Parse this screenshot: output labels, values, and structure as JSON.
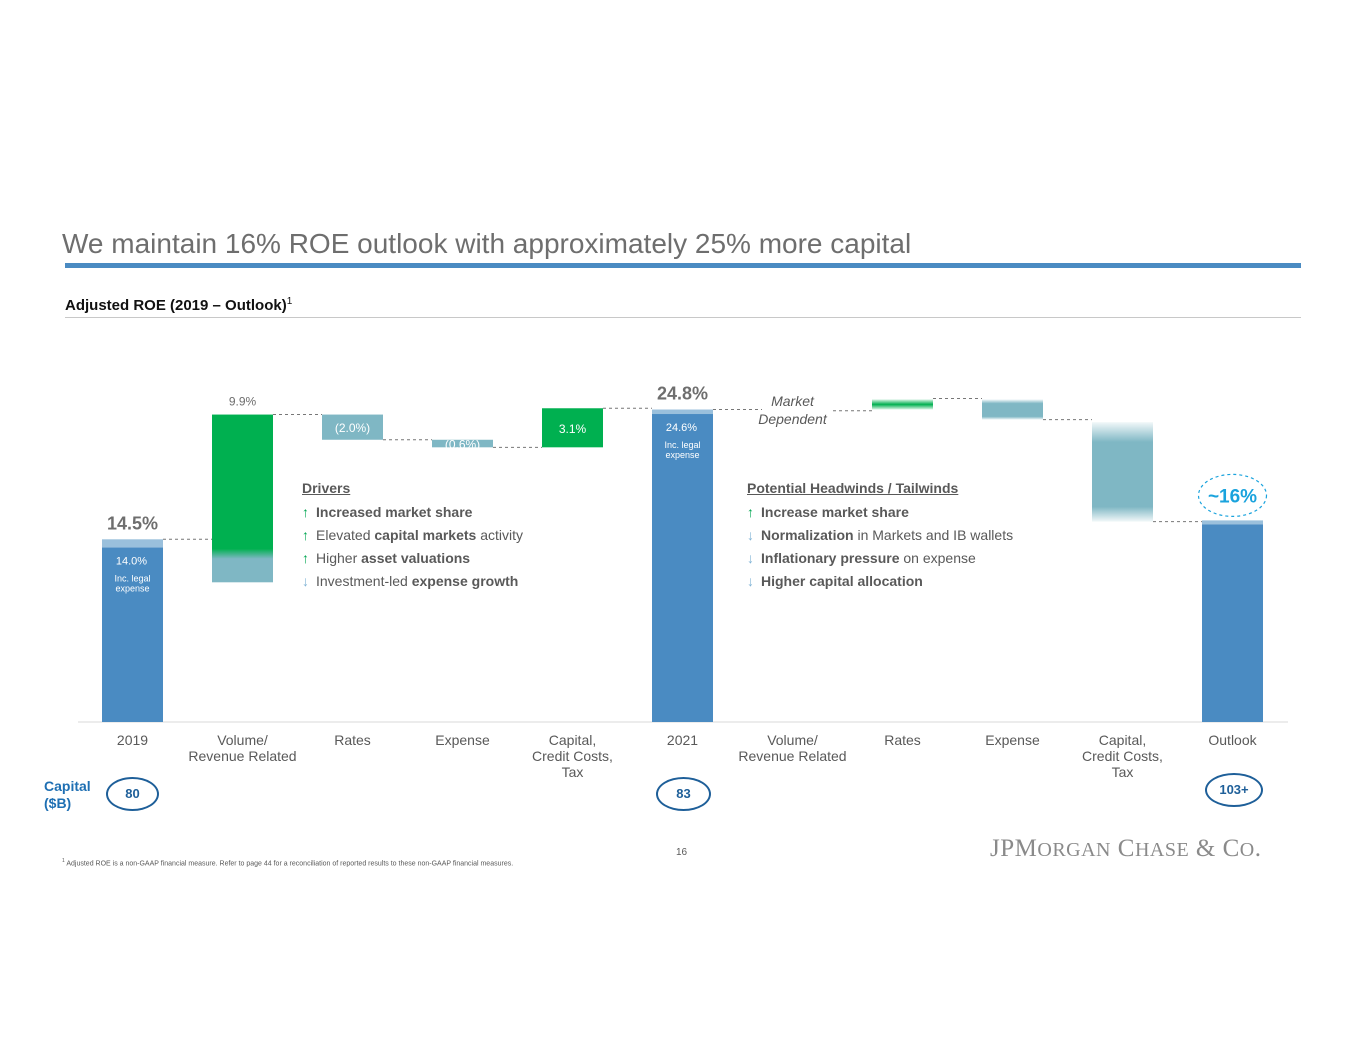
{
  "title": "We maintain 16% ROE outlook with approximately 25% more capital",
  "subtitle": "Adjusted ROE (2019 – Outlook)",
  "subtitle_sup": "1",
  "colors": {
    "total": "#4a8bc2",
    "increase": "#00b050",
    "decrease": "#7fb7c4",
    "accent": "#1aa3dd",
    "capital": "#1e5f99"
  },
  "chart_data": {
    "type": "waterfall",
    "unit": "%",
    "bars": [
      {
        "category": "2019",
        "kind": "total",
        "value": 14.5,
        "label": "14.5%",
        "inner_value": 14.0,
        "inner_label": "14.0%",
        "note": "Inc. legal\nexpense"
      },
      {
        "category": "Volume/\nRevenue Related",
        "kind": "increase",
        "value": 9.9,
        "label": "9.9%"
      },
      {
        "category": "Rates",
        "kind": "decrease",
        "value": -2.0,
        "label": "(2.0%)"
      },
      {
        "category": "Expense",
        "kind": "decrease",
        "value": -0.6,
        "label": "(0.6%)"
      },
      {
        "category": "Capital,\nCredit Costs,\nTax",
        "kind": "increase",
        "value": 3.1,
        "label": "3.1%"
      },
      {
        "category": "2021",
        "kind": "total",
        "value": 24.8,
        "label": "24.8%",
        "inner_value": 24.6,
        "inner_label": "24.6%",
        "note": "Inc. legal\nexpense"
      },
      {
        "category": "Volume/\nRevenue Related",
        "kind": "indicative",
        "label": "Market\nDependent"
      },
      {
        "category": "Rates",
        "kind": "indicative-increase"
      },
      {
        "category": "Expense",
        "kind": "indicative-decrease"
      },
      {
        "category": "Capital,\nCredit Costs,\nTax",
        "kind": "indicative-decrease"
      },
      {
        "category": "Outlook",
        "kind": "total",
        "value": 16,
        "label": "~16%"
      }
    ],
    "capital": {
      "label": "Capital\n($B)",
      "values": [
        "80",
        "83",
        "103+"
      ],
      "at": [
        "2019",
        "2021",
        "Outlook"
      ]
    }
  },
  "drivers": {
    "title": "Drivers",
    "items": [
      {
        "dir": "up",
        "parts": [
          [
            "Increased market share",
            true
          ]
        ]
      },
      {
        "dir": "up",
        "parts": [
          [
            "Elevated ",
            false
          ],
          [
            "capital markets",
            true
          ],
          [
            " activity",
            false
          ]
        ]
      },
      {
        "dir": "up",
        "parts": [
          [
            "Higher ",
            false
          ],
          [
            "asset valuations",
            true
          ]
        ]
      },
      {
        "dir": "down",
        "parts": [
          [
            "Investment-led ",
            false
          ],
          [
            "expense growth",
            true
          ]
        ]
      }
    ]
  },
  "headwinds": {
    "title": "Potential Headwinds / Tailwinds",
    "items": [
      {
        "dir": "up",
        "parts": [
          [
            "Increase market share",
            true
          ]
        ]
      },
      {
        "dir": "down",
        "parts": [
          [
            "Normalization",
            true
          ],
          [
            " in Markets and IB wallets",
            false
          ]
        ]
      },
      {
        "dir": "down",
        "parts": [
          [
            "Inflationary pressure",
            true
          ],
          [
            " on expense",
            false
          ]
        ]
      },
      {
        "dir": "down",
        "parts": [
          [
            "Higher capital allocation",
            true
          ]
        ]
      }
    ]
  },
  "footnote": "Adjusted ROE is a non-GAAP financial measure. Refer to page 44 for a reconciliation of reported results to these non-GAAP financial measures.",
  "footnote_sup": "1",
  "page_number": "16",
  "logo": "JPMorgan Chase & Co."
}
